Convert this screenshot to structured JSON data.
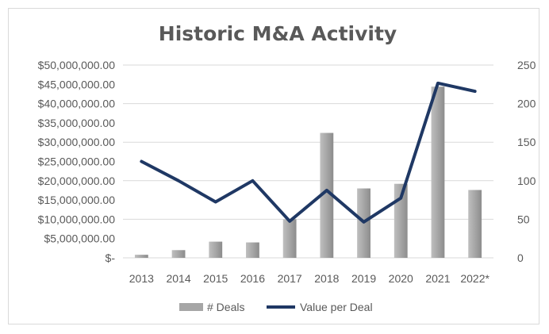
{
  "chart_data": {
    "type": "bar+line",
    "title": "Historic M&A Activity",
    "categories": [
      "2013",
      "2014",
      "2015",
      "2016",
      "2017",
      "2018",
      "2019",
      "2020",
      "2021",
      "2022*"
    ],
    "series": [
      {
        "name": "# Deals",
        "type": "bar",
        "axis": "right",
        "color": "#a6a6a6",
        "values": [
          4,
          10,
          21,
          20,
          50,
          162,
          90,
          96,
          222,
          88
        ]
      },
      {
        "name": "Value per Deal",
        "type": "line",
        "axis": "left",
        "color": "#1f3864",
        "values": [
          25000000,
          20000000,
          14500000,
          20000000,
          9500000,
          17500000,
          9300000,
          15500000,
          45300000,
          43200000
        ]
      }
    ],
    "y_left": {
      "min": 0,
      "max": 50000000,
      "tick_values": [
        0,
        5000000,
        10000000,
        15000000,
        20000000,
        25000000,
        30000000,
        35000000,
        40000000,
        45000000,
        50000000
      ],
      "tick_labels": [
        "$-",
        "$5,000,000.00",
        "$10,000,000.00",
        "$15,000,000.00",
        "$20,000,000.00",
        "$25,000,000.00",
        "$30,000,000.00",
        "$35,000,000.00",
        "$40,000,000.00",
        "$45,000,000.00",
        "$50,000,000.00"
      ]
    },
    "y_right": {
      "min": 0,
      "max": 250,
      "tick_values": [
        0,
        50,
        100,
        150,
        200,
        250
      ],
      "tick_labels": [
        "0",
        "50",
        "100",
        "150",
        "200",
        "250"
      ]
    },
    "grid": true,
    "legend": "bottom",
    "legend_items": [
      {
        "label": "# Deals",
        "color": "#a6a6a6",
        "kind": "bar"
      },
      {
        "label": "Value per Deal",
        "color": "#1f3864",
        "kind": "line"
      }
    ],
    "gridline_color": "#d9d9d9"
  }
}
